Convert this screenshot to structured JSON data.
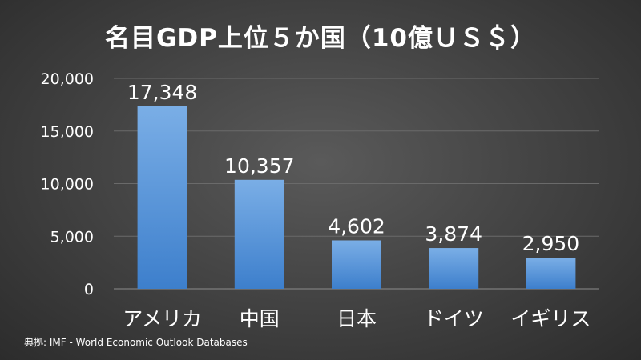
{
  "chart_data": {
    "type": "bar",
    "title": "名目GDP上位５か国（10億ＵＳ＄）",
    "categories": [
      "アメリカ",
      "中国",
      "日本",
      "ドイツ",
      "イギリス"
    ],
    "values": [
      17348,
      10357,
      4602,
      3874,
      2950
    ],
    "data_labels": [
      "17,348",
      "10,357",
      "4,602",
      "3,874",
      "2,950"
    ],
    "ylim": [
      0,
      20000
    ],
    "yticks": [
      0,
      5000,
      10000,
      15000,
      20000
    ],
    "ytick_labels": [
      "0",
      "5,000",
      "10,000",
      "15,000",
      "20,000"
    ],
    "xlabel": "",
    "ylabel": "",
    "grid": true,
    "legend": "none",
    "bar_color_top": "#7aaee6",
    "bar_color_bottom": "#3d7fcc"
  },
  "source": "典拠: IMF - World Economic Outlook Databases"
}
